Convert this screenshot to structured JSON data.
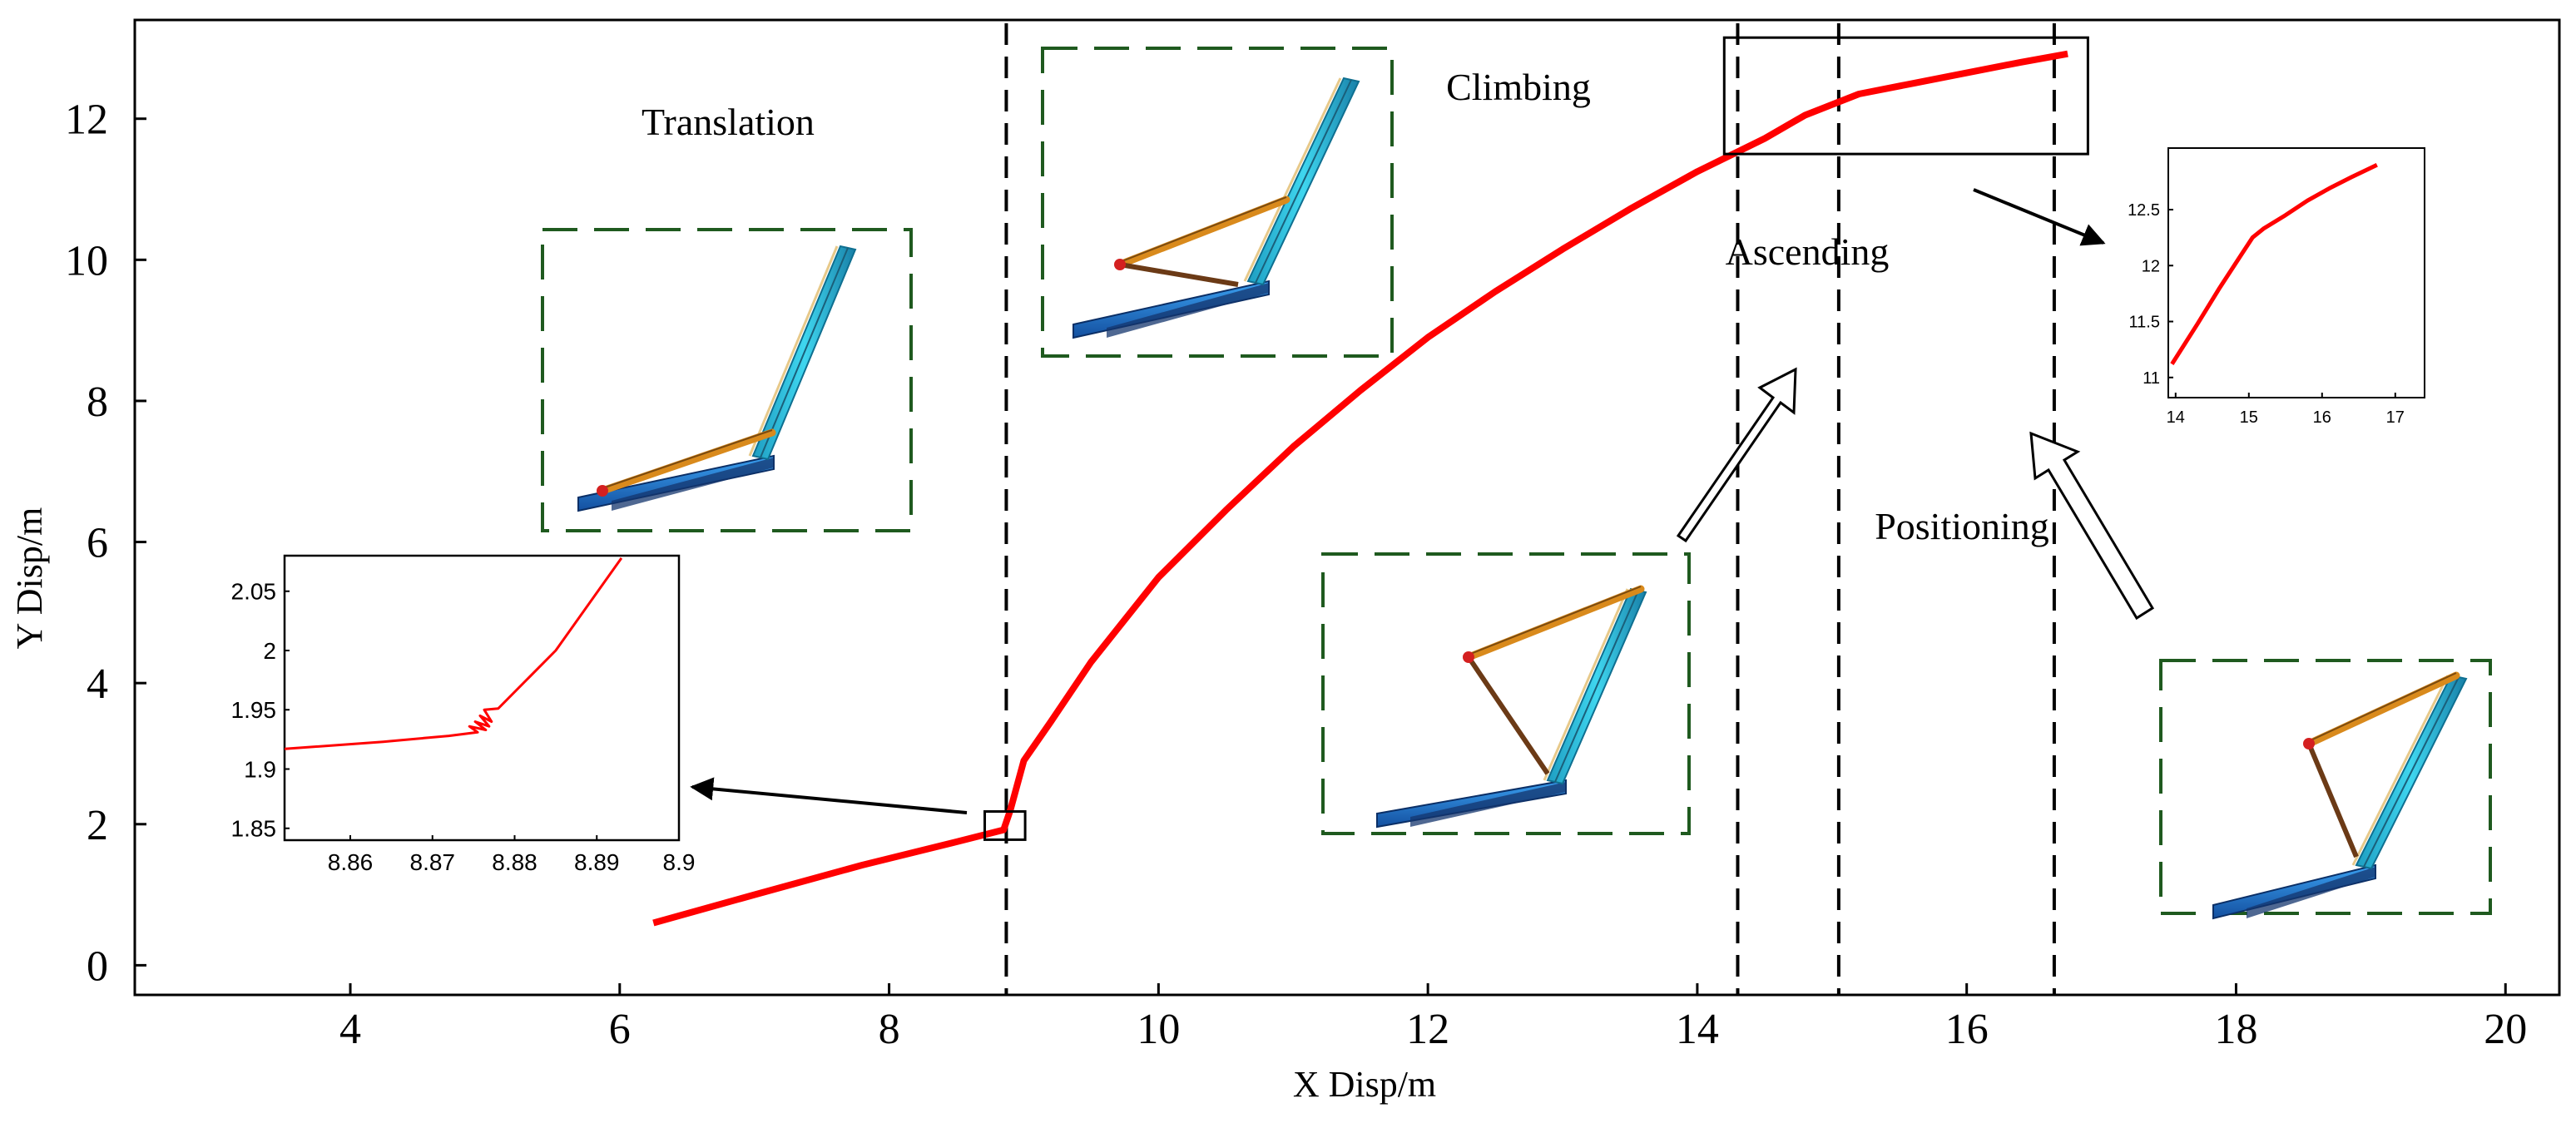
{
  "chart_data": [
    {
      "type": "line",
      "name": "main-trajectory",
      "xlabel": "X Disp/m",
      "ylabel": "Y Disp/m",
      "xlim": [
        2.4,
        20.4
      ],
      "ylim": [
        -0.42,
        13.4
      ],
      "xticks": [
        4,
        6,
        8,
        10,
        12,
        14,
        16,
        18,
        20
      ],
      "yticks": [
        0,
        2,
        4,
        6,
        8,
        10,
        12
      ],
      "grid": false,
      "color": "#ff0000",
      "series": [
        {
          "name": "trajectory",
          "x": [
            6.25,
            7.0,
            7.8,
            8.5,
            8.85,
            8.9,
            9.0,
            9.2,
            9.5,
            10.0,
            10.5,
            11.0,
            11.5,
            12.0,
            12.5,
            13.0,
            13.5,
            14.0,
            14.5,
            14.8,
            15.2,
            15.6,
            16.0,
            16.4,
            16.75
          ],
          "y": [
            0.6,
            1.0,
            1.42,
            1.75,
            1.92,
            2.2,
            2.9,
            3.45,
            4.3,
            5.5,
            6.45,
            7.35,
            8.15,
            8.9,
            9.55,
            10.15,
            10.72,
            11.25,
            11.72,
            12.05,
            12.35,
            12.5,
            12.65,
            12.8,
            12.92
          ]
        }
      ],
      "phase_boundaries": [
        8.87,
        14.3,
        15.05,
        16.65
      ],
      "phase_labels": [
        "Translation",
        "Climbing",
        "Ascending",
        "Positioning"
      ],
      "zoom_regions": [
        {
          "name": "start-of-climbing",
          "xlim": [
            8.71,
            9.01
          ],
          "ylim": [
            1.78,
            2.18
          ]
        },
        {
          "name": "end-region",
          "xlim": [
            14.2,
            16.9
          ],
          "ylim": [
            11.5,
            13.15
          ]
        }
      ]
    },
    {
      "type": "line",
      "name": "inset-left",
      "xlim": [
        8.852,
        8.9
      ],
      "ylim": [
        1.84,
        2.08
      ],
      "xticks": [
        8.86,
        8.87,
        8.88,
        8.89,
        8.9
      ],
      "yticks": [
        1.85,
        1.9,
        1.95,
        2,
        2.05
      ],
      "color": "#ff0000",
      "series": [
        {
          "name": "detail",
          "x": [
            8.852,
            8.864,
            8.872,
            8.8755,
            8.8745,
            8.8765,
            8.8752,
            8.8769,
            8.8758,
            8.8772,
            8.8763,
            8.878,
            8.885,
            8.893
          ],
          "y": [
            1.917,
            1.923,
            1.928,
            1.931,
            1.936,
            1.933,
            1.94,
            1.936,
            1.945,
            1.94,
            1.95,
            1.951,
            2.0,
            2.078
          ]
        }
      ]
    },
    {
      "type": "line",
      "name": "inset-right",
      "xlim": [
        13.9,
        17.4
      ],
      "ylim": [
        10.82,
        13.05
      ],
      "xticks": [
        14,
        15,
        16,
        17
      ],
      "yticks": [
        11,
        11.5,
        12,
        12.5
      ],
      "color": "#ff0000",
      "series": [
        {
          "name": "detail",
          "x": [
            13.95,
            14.3,
            14.6,
            14.9,
            15.05,
            15.2,
            15.5,
            15.8,
            16.1,
            16.4,
            16.75
          ],
          "y": [
            11.12,
            11.48,
            11.8,
            12.1,
            12.25,
            12.33,
            12.45,
            12.58,
            12.69,
            12.79,
            12.9
          ]
        }
      ]
    }
  ]
}
